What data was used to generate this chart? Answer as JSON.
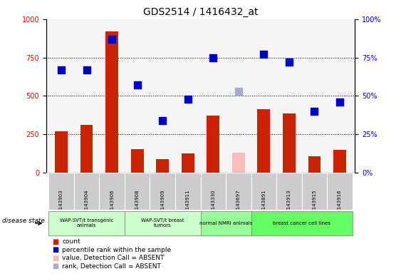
{
  "title": "GDS2514 / 1416432_at",
  "samples": [
    "GSM143903",
    "GSM143904",
    "GSM143906",
    "GSM143908",
    "GSM143909",
    "GSM143911",
    "GSM143330",
    "GSM143697",
    "GSM143891",
    "GSM143913",
    "GSM143915",
    "GSM143916"
  ],
  "bar_values": [
    270,
    310,
    920,
    155,
    90,
    125,
    370,
    130,
    415,
    385,
    105,
    150
  ],
  "bar_absent": [
    false,
    false,
    false,
    false,
    false,
    false,
    false,
    true,
    false,
    false,
    false,
    false
  ],
  "rank_values": [
    67,
    67,
    87,
    57,
    34,
    48,
    75,
    53,
    77,
    72,
    40,
    46
  ],
  "rank_absent": [
    false,
    false,
    false,
    false,
    false,
    false,
    false,
    true,
    false,
    false,
    false,
    false
  ],
  "bar_color": "#cc2200",
  "bar_absent_color": "#ffbbbb",
  "rank_color": "#0000cc",
  "rank_absent_color": "#aaaacc",
  "ylim_left": [
    0,
    1000
  ],
  "ylim_right": [
    0,
    100
  ],
  "yticks_left": [
    0,
    250,
    500,
    750,
    1000
  ],
  "yticks_right": [
    0,
    25,
    50,
    75,
    100
  ],
  "group_ranges": [
    {
      "start": 0,
      "end": 2,
      "label": "WAP-SVT/t transgenic\nanimals",
      "color": "#ccffcc"
    },
    {
      "start": 3,
      "end": 5,
      "label": "WAP-SVT/t breast\ntumors",
      "color": "#ccffcc"
    },
    {
      "start": 6,
      "end": 7,
      "label": "normal NMRI animals",
      "color": "#99ff99"
    },
    {
      "start": 8,
      "end": 11,
      "label": "breast cancer cell lines",
      "color": "#66ff66"
    }
  ],
  "disease_state_label": "disease state",
  "bar_width": 0.5,
  "marker_size": 45,
  "tick_area_color": "#cccccc",
  "plot_bg_color": "#f5f5f5"
}
